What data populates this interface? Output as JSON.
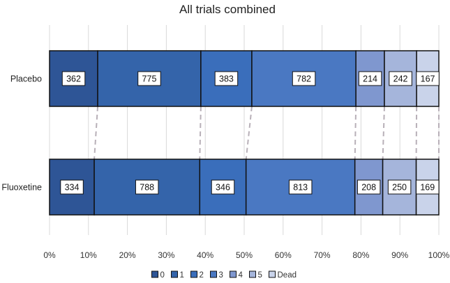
{
  "chart_data": {
    "type": "bar",
    "orientation": "horizontal",
    "stacking": "percent",
    "title": "All trials combined",
    "xlabel": "",
    "ylabel": "",
    "xlim": [
      0,
      100
    ],
    "x_ticks": [
      "0%",
      "10%",
      "20%",
      "30%",
      "40%",
      "50%",
      "60%",
      "70%",
      "80%",
      "90%",
      "100%"
    ],
    "grid": "vertical",
    "legend_position": "bottom",
    "categories": [
      "Placebo",
      "Fluoxetine"
    ],
    "series": [
      {
        "name": "0",
        "values": [
          362,
          334
        ],
        "color": "#2e5596"
      },
      {
        "name": "1",
        "values": [
          775,
          788
        ],
        "color": "#3464aa"
      },
      {
        "name": "2",
        "values": [
          383,
          346
        ],
        "color": "#3a6ebb"
      },
      {
        "name": "3",
        "values": [
          782,
          813
        ],
        "color": "#4a78c2"
      },
      {
        "name": "4",
        "values": [
          214,
          208
        ],
        "color": "#7f97cf"
      },
      {
        "name": "5",
        "values": [
          242,
          250
        ],
        "color": "#a5b5db"
      },
      {
        "name": "Dead",
        "values": [
          167,
          169
        ],
        "color": "#c9d3ea"
      }
    ],
    "connector_lines": "dashed grey lines linking matching segment boundaries between the two bars"
  }
}
